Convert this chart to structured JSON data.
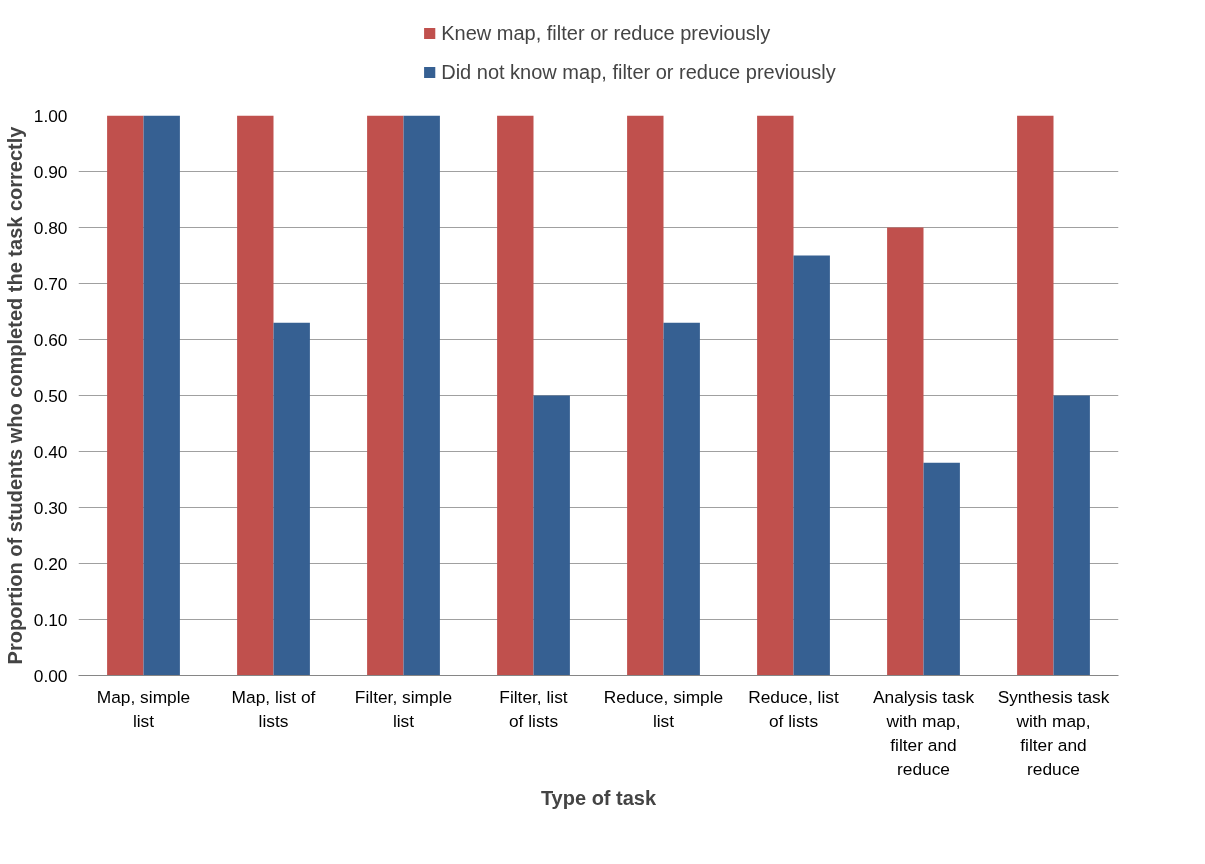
{
  "chart_data": {
    "type": "bar",
    "xlabel": "Type of task",
    "ylabel": "Proportion of students who completed the task correctly",
    "categories": [
      "Map, simple list",
      "Map, list of lists",
      "Filter, simple list",
      "Filter, list of lists",
      "Reduce, simple list",
      "Reduce, list of lists",
      "Analysis task with map, filter and reduce",
      "Synthesis task with map, filter and reduce"
    ],
    "series": [
      {
        "name": "Knew map, filter or reduce previously",
        "color": "#c0504d",
        "values": [
          1.0,
          1.0,
          1.0,
          1.0,
          1.0,
          1.0,
          0.8,
          1.0
        ]
      },
      {
        "name": "Did not know map, filter or reduce previously",
        "color": "#366092",
        "values": [
          1.0,
          0.63,
          1.0,
          0.5,
          0.63,
          0.75,
          0.38,
          0.5
        ]
      }
    ],
    "ylim": [
      0,
      1
    ],
    "yticks": [
      {
        "value": 0,
        "label": "0.00"
      },
      {
        "value": 0.1,
        "label": "0.10"
      },
      {
        "value": 0.2,
        "label": "0.20"
      },
      {
        "value": 0.3,
        "label": "0.30"
      },
      {
        "value": 0.4,
        "label": "0.40"
      },
      {
        "value": 0.5,
        "label": "0.50"
      },
      {
        "value": 0.6,
        "label": "0.60"
      },
      {
        "value": 0.7,
        "label": "0.70"
      },
      {
        "value": 0.8,
        "label": "0.80"
      },
      {
        "value": 0.9,
        "label": "0.90"
      },
      {
        "value": 1,
        "label": "1.00"
      }
    ],
    "grid": "y",
    "legend": "top"
  }
}
